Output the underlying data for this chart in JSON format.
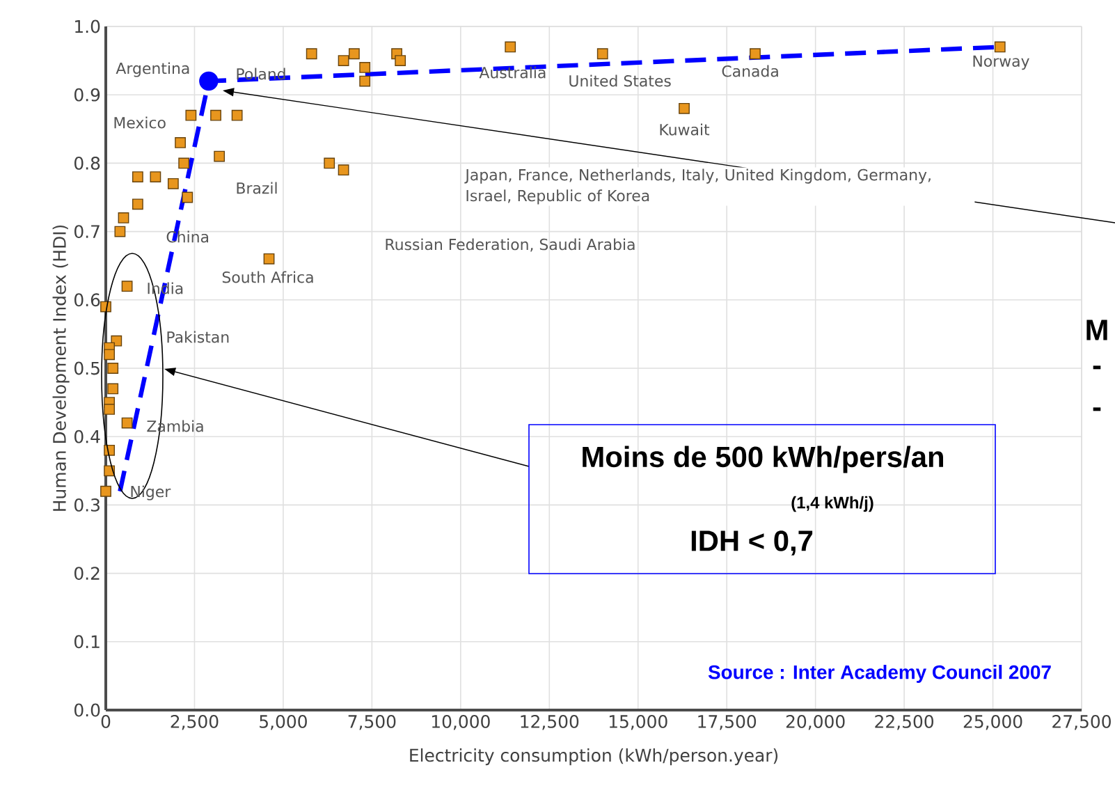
{
  "chart_data": {
    "type": "scatter",
    "xlabel": "Electricity consumption (kWh/person.year)",
    "ylabel": "Human Development Index (HDI)",
    "xlim": [
      0,
      27500
    ],
    "ylim": [
      0,
      1.0
    ],
    "xticks": [
      0,
      {
        "value": 2500,
        "label": "2,500"
      },
      {
        "value": 5000,
        "label": "5,000"
      },
      {
        "value": 7500,
        "label": "7,500"
      },
      {
        "value": 10000,
        "label": "10,000"
      },
      {
        "value": 12500,
        "label": "12,500"
      },
      {
        "value": 15000,
        "label": "15,000"
      },
      {
        "value": 17500,
        "label": "17,500"
      },
      {
        "value": 20000,
        "label": "20,000"
      },
      {
        "value": 22500,
        "label": "22,500"
      },
      {
        "value": 25000,
        "label": "25,000"
      },
      {
        "value": 27500,
        "label": "27,500"
      }
    ],
    "yticks": [
      {
        "value": 0,
        "label": "0.0"
      },
      0.1,
      0.2,
      0.3,
      0.4,
      0.5,
      0.6,
      0.7,
      0.8,
      0.9,
      {
        "value": 1.0,
        "label": "1.0"
      }
    ],
    "grid": true,
    "marker": "square",
    "series": [
      {
        "color": "#e8961e",
        "x": [
          25200,
          18300,
          14000,
          16300,
          11400,
          5800,
          6700,
          7000,
          7300,
          7300,
          8200,
          8300,
          6300,
          6700,
          4600,
          2400,
          3100,
          3700,
          2100,
          3200,
          2200,
          900,
          1400,
          1900,
          2300,
          900,
          500,
          400,
          600,
          0,
          300,
          100,
          100,
          200,
          200,
          100,
          100,
          600,
          100,
          100,
          0
        ],
        "values": [
          0.97,
          0.96,
          0.96,
          0.88,
          0.97,
          0.96,
          0.95,
          0.96,
          0.94,
          0.92,
          0.96,
          0.95,
          0.8,
          0.79,
          0.66,
          0.87,
          0.87,
          0.87,
          0.83,
          0.81,
          0.8,
          0.78,
          0.78,
          0.77,
          0.75,
          0.74,
          0.72,
          0.7,
          0.62,
          0.59,
          0.54,
          0.53,
          0.52,
          0.5,
          0.47,
          0.45,
          0.44,
          0.42,
          0.38,
          0.35,
          0.32
        ]
      },
      {
        "type": "line",
        "color": "#0000ff",
        "line_style": "dashed",
        "marker": "none",
        "x": [
          400,
          2900,
          25200
        ],
        "values": [
          0.32,
          0.92,
          0.97
        ]
      },
      {
        "type": "scatter",
        "color": "#0000ff",
        "marker": "circle",
        "x": [
          2900
        ],
        "values": [
          0.92
        ]
      }
    ],
    "annotations": [
      "Argentina",
      "Poland",
      "Mexico",
      "Brazil",
      "China",
      "India",
      "Pakistan",
      "Zambia",
      "Niger",
      "South Africa",
      "Russian Federation, Saudi Arabia",
      "Japan, France, Netherlands, Italy, United Kingdom, Germany, Israel, Republic of Korea",
      "Australia",
      "United States",
      "Kuwait",
      "Canada",
      "Norway",
      "Moins de 500 kWh/pers/an",
      "(1,4 kWh/j)",
      "IDH < 0,7",
      "Source : Inter Academy Council 2007",
      "M",
      "-",
      "-"
    ]
  }
}
